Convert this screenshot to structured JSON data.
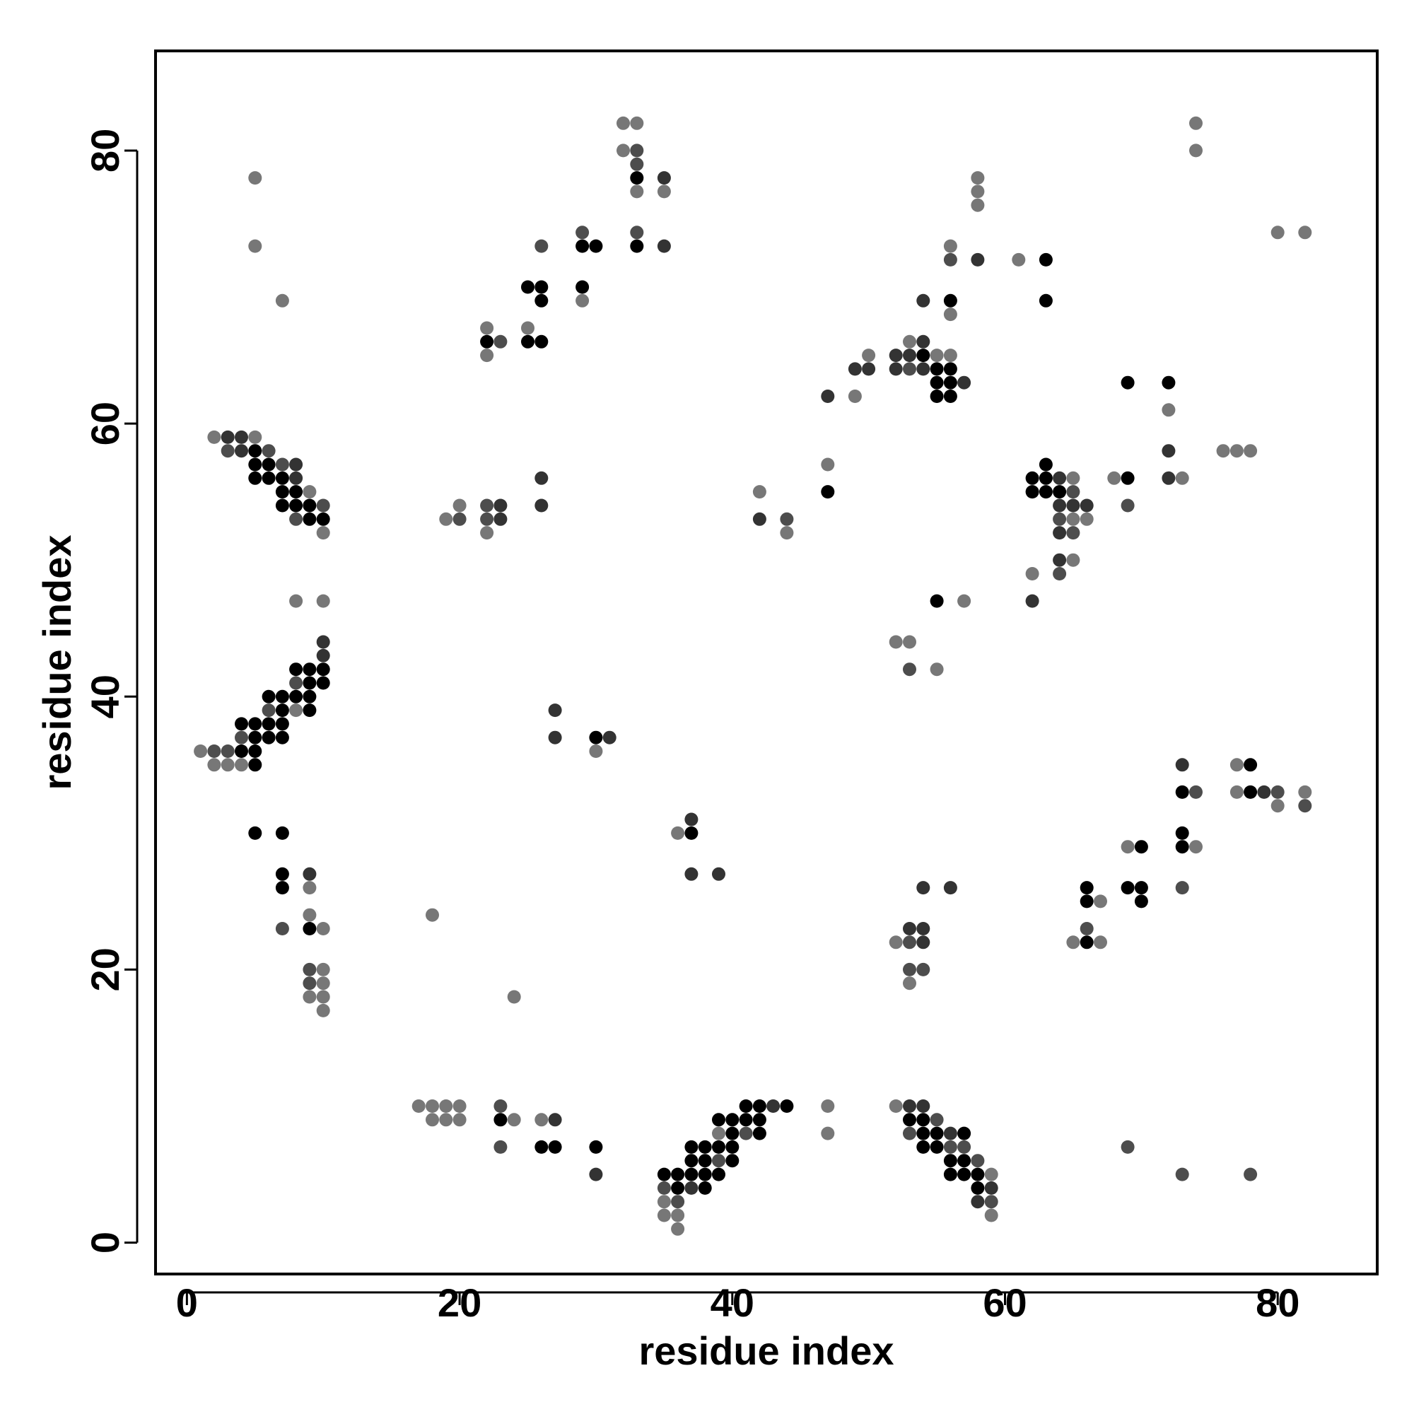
{
  "chart_data": {
    "type": "scatter",
    "title": "",
    "xlabel": "residue index",
    "ylabel": "residue index",
    "xlim": [
      -2.3,
      87.3
    ],
    "ylim": [
      -2.3,
      87.3
    ],
    "xticks": [
      0,
      20,
      40,
      60,
      80
    ],
    "yticks": [
      0,
      20,
      40,
      60,
      80
    ],
    "grid": false,
    "legend": "none",
    "marker": "filled circle",
    "point_shades": {
      "1": "#000000",
      "2": "#333333",
      "3": "#4d4d4d",
      "4": "#777777"
    },
    "points": [
      [
        5,
        78,
        4
      ],
      [
        5,
        73,
        4
      ],
      [
        7,
        69,
        4
      ],
      [
        2,
        59,
        4
      ],
      [
        3,
        59,
        2
      ],
      [
        4,
        59,
        2
      ],
      [
        5,
        59,
        4
      ],
      [
        3,
        58,
        3
      ],
      [
        4,
        58,
        2
      ],
      [
        5,
        58,
        1
      ],
      [
        6,
        58,
        3
      ],
      [
        5,
        57,
        1
      ],
      [
        6,
        57,
        1
      ],
      [
        7,
        57,
        3
      ],
      [
        8,
        57,
        2
      ],
      [
        5,
        56,
        1
      ],
      [
        6,
        56,
        1
      ],
      [
        7,
        56,
        1
      ],
      [
        8,
        56,
        2
      ],
      [
        7,
        55,
        1
      ],
      [
        8,
        55,
        1
      ],
      [
        9,
        55,
        4
      ],
      [
        7,
        54,
        1
      ],
      [
        8,
        54,
        1
      ],
      [
        9,
        54,
        1
      ],
      [
        10,
        54,
        3
      ],
      [
        8,
        53,
        3
      ],
      [
        9,
        53,
        1
      ],
      [
        10,
        53,
        1
      ],
      [
        10,
        52,
        4
      ],
      [
        8,
        47,
        4
      ],
      [
        10,
        47,
        4
      ],
      [
        10,
        44,
        2
      ],
      [
        10,
        43,
        2
      ],
      [
        8,
        42,
        1
      ],
      [
        9,
        42,
        1
      ],
      [
        10,
        42,
        1
      ],
      [
        8,
        41,
        3
      ],
      [
        9,
        41,
        1
      ],
      [
        10,
        41,
        1
      ],
      [
        6,
        40,
        1
      ],
      [
        7,
        40,
        1
      ],
      [
        8,
        40,
        1
      ],
      [
        9,
        40,
        1
      ],
      [
        6,
        39,
        3
      ],
      [
        7,
        39,
        1
      ],
      [
        8,
        39,
        4
      ],
      [
        9,
        39,
        1
      ],
      [
        4,
        38,
        1
      ],
      [
        5,
        38,
        1
      ],
      [
        6,
        38,
        1
      ],
      [
        7,
        38,
        1
      ],
      [
        4,
        37,
        3
      ],
      [
        5,
        37,
        1
      ],
      [
        6,
        37,
        1
      ],
      [
        7,
        37,
        1
      ],
      [
        1,
        36,
        4
      ],
      [
        2,
        36,
        3
      ],
      [
        3,
        36,
        3
      ],
      [
        4,
        36,
        1
      ],
      [
        5,
        36,
        1
      ],
      [
        2,
        35,
        4
      ],
      [
        3,
        35,
        4
      ],
      [
        4,
        35,
        4
      ],
      [
        5,
        35,
        1
      ],
      [
        5,
        30,
        1
      ],
      [
        7,
        30,
        1
      ],
      [
        7,
        27,
        1
      ],
      [
        9,
        27,
        2
      ],
      [
        7,
        26,
        1
      ],
      [
        9,
        26,
        4
      ],
      [
        9,
        24,
        4
      ],
      [
        7,
        23,
        3
      ],
      [
        9,
        23,
        1
      ],
      [
        10,
        23,
        4
      ],
      [
        9,
        20,
        3
      ],
      [
        10,
        20,
        4
      ],
      [
        9,
        19,
        3
      ],
      [
        10,
        19,
        4
      ],
      [
        9,
        18,
        4
      ],
      [
        10,
        18,
        4
      ],
      [
        10,
        17,
        4
      ],
      [
        18,
        24,
        4
      ],
      [
        24,
        18,
        4
      ],
      [
        17,
        10,
        4
      ],
      [
        18,
        10,
        4
      ],
      [
        19,
        10,
        4
      ],
      [
        20,
        10,
        4
      ],
      [
        18,
        9,
        4
      ],
      [
        19,
        9,
        4
      ],
      [
        20,
        9,
        4
      ],
      [
        23,
        10,
        3
      ],
      [
        23,
        9,
        1
      ],
      [
        24,
        9,
        4
      ],
      [
        26,
        9,
        4
      ],
      [
        27,
        9,
        2
      ],
      [
        23,
        7,
        3
      ],
      [
        26,
        7,
        1
      ],
      [
        27,
        7,
        1
      ],
      [
        30,
        7,
        1
      ],
      [
        30,
        5,
        2
      ],
      [
        19,
        53,
        4
      ],
      [
        20,
        54,
        4
      ],
      [
        20,
        53,
        3
      ],
      [
        22,
        54,
        3
      ],
      [
        23,
        54,
        2
      ],
      [
        22,
        53,
        3
      ],
      [
        23,
        53,
        2
      ],
      [
        22,
        52,
        4
      ],
      [
        26,
        56,
        2
      ],
      [
        26,
        54,
        2
      ],
      [
        22,
        67,
        4
      ],
      [
        22,
        66,
        1
      ],
      [
        23,
        66,
        3
      ],
      [
        22,
        65,
        4
      ],
      [
        25,
        67,
        4
      ],
      [
        25,
        66,
        1
      ],
      [
        26,
        66,
        1
      ],
      [
        25,
        70,
        1
      ],
      [
        26,
        70,
        1
      ],
      [
        26,
        69,
        1
      ],
      [
        26,
        73,
        3
      ],
      [
        29,
        74,
        3
      ],
      [
        29,
        73,
        1
      ],
      [
        30,
        73,
        1
      ],
      [
        29,
        70,
        1
      ],
      [
        29,
        69,
        4
      ],
      [
        32,
        82,
        4
      ],
      [
        33,
        82,
        4
      ],
      [
        32,
        80,
        4
      ],
      [
        33,
        80,
        3
      ],
      [
        33,
        79,
        3
      ],
      [
        33,
        78,
        1
      ],
      [
        35,
        78,
        2
      ],
      [
        33,
        77,
        4
      ],
      [
        35,
        77,
        4
      ],
      [
        33,
        74,
        3
      ],
      [
        33,
        73,
        1
      ],
      [
        35,
        73,
        2
      ],
      [
        27,
        39,
        2
      ],
      [
        27,
        37,
        2
      ],
      [
        30,
        37,
        1
      ],
      [
        31,
        37,
        2
      ],
      [
        30,
        36,
        4
      ],
      [
        36,
        30,
        4
      ],
      [
        37,
        31,
        2
      ],
      [
        37,
        30,
        1
      ],
      [
        37,
        27,
        2
      ],
      [
        39,
        27,
        2
      ],
      [
        36,
        5,
        1
      ],
      [
        35,
        5,
        1
      ],
      [
        35,
        4,
        3
      ],
      [
        36,
        4,
        1
      ],
      [
        37,
        4,
        2
      ],
      [
        38,
        4,
        1
      ],
      [
        35,
        3,
        4
      ],
      [
        36,
        3,
        3
      ],
      [
        35,
        2,
        4
      ],
      [
        36,
        2,
        4
      ],
      [
        36,
        1,
        4
      ],
      [
        37,
        7,
        1
      ],
      [
        38,
        7,
        1
      ],
      [
        39,
        7,
        1
      ],
      [
        40,
        7,
        1
      ],
      [
        37,
        6,
        1
      ],
      [
        38,
        6,
        1
      ],
      [
        39,
        6,
        3
      ],
      [
        40,
        6,
        1
      ],
      [
        37,
        5,
        1
      ],
      [
        38,
        5,
        1
      ],
      [
        39,
        5,
        1
      ],
      [
        39,
        9,
        1
      ],
      [
        40,
        9,
        1
      ],
      [
        41,
        9,
        1
      ],
      [
        42,
        9,
        1
      ],
      [
        39,
        8,
        4
      ],
      [
        40,
        8,
        1
      ],
      [
        41,
        8,
        3
      ],
      [
        42,
        8,
        1
      ],
      [
        41,
        10,
        1
      ],
      [
        42,
        10,
        1
      ],
      [
        43,
        10,
        2
      ],
      [
        44,
        10,
        1
      ],
      [
        47,
        10,
        4
      ],
      [
        47,
        8,
        4
      ],
      [
        52,
        10,
        4
      ],
      [
        53,
        10,
        2
      ],
      [
        54,
        10,
        2
      ],
      [
        53,
        9,
        1
      ],
      [
        54,
        9,
        1
      ],
      [
        55,
        9,
        3
      ],
      [
        53,
        8,
        3
      ],
      [
        54,
        8,
        1
      ],
      [
        55,
        8,
        1
      ],
      [
        56,
        8,
        2
      ],
      [
        57,
        8,
        1
      ],
      [
        54,
        7,
        1
      ],
      [
        55,
        7,
        1
      ],
      [
        56,
        7,
        3
      ],
      [
        57,
        7,
        3
      ],
      [
        56,
        6,
        1
      ],
      [
        57,
        6,
        1
      ],
      [
        58,
        6,
        3
      ],
      [
        56,
        5,
        1
      ],
      [
        57,
        5,
        1
      ],
      [
        58,
        5,
        1
      ],
      [
        59,
        5,
        4
      ],
      [
        58,
        4,
        1
      ],
      [
        59,
        4,
        2
      ],
      [
        58,
        3,
        2
      ],
      [
        59,
        3,
        3
      ],
      [
        59,
        2,
        4
      ],
      [
        42,
        55,
        4
      ],
      [
        42,
        53,
        2
      ],
      [
        44,
        53,
        3
      ],
      [
        44,
        52,
        4
      ],
      [
        47,
        62,
        2
      ],
      [
        47,
        57,
        4
      ],
      [
        47,
        55,
        1
      ],
      [
        49,
        64,
        2
      ],
      [
        50,
        65,
        4
      ],
      [
        50,
        64,
        2
      ],
      [
        49,
        62,
        4
      ],
      [
        52,
        65,
        2
      ],
      [
        53,
        66,
        4
      ],
      [
        54,
        66,
        2
      ],
      [
        53,
        65,
        2
      ],
      [
        54,
        65,
        1
      ],
      [
        55,
        65,
        4
      ],
      [
        56,
        65,
        4
      ],
      [
        52,
        64,
        2
      ],
      [
        53,
        64,
        3
      ],
      [
        54,
        64,
        2
      ],
      [
        55,
        64,
        1
      ],
      [
        56,
        64,
        1
      ],
      [
        55,
        63,
        1
      ],
      [
        56,
        63,
        1
      ],
      [
        57,
        63,
        2
      ],
      [
        55,
        62,
        1
      ],
      [
        56,
        62,
        1
      ],
      [
        54,
        69,
        2
      ],
      [
        56,
        69,
        1
      ],
      [
        56,
        68,
        4
      ],
      [
        56,
        73,
        4
      ],
      [
        56,
        72,
        3
      ],
      [
        58,
        72,
        2
      ],
      [
        58,
        78,
        4
      ],
      [
        58,
        77,
        4
      ],
      [
        58,
        76,
        4
      ],
      [
        61,
        72,
        4
      ],
      [
        63,
        72,
        1
      ],
      [
        63,
        69,
        1
      ],
      [
        52,
        44,
        4
      ],
      [
        53,
        44,
        4
      ],
      [
        53,
        42,
        3
      ],
      [
        55,
        42,
        4
      ],
      [
        55,
        47,
        1
      ],
      [
        57,
        47,
        4
      ],
      [
        52,
        22,
        4
      ],
      [
        53,
        23,
        2
      ],
      [
        54,
        23,
        2
      ],
      [
        53,
        22,
        3
      ],
      [
        54,
        22,
        2
      ],
      [
        53,
        20,
        3
      ],
      [
        54,
        20,
        3
      ],
      [
        53,
        19,
        4
      ],
      [
        54,
        26,
        2
      ],
      [
        56,
        26,
        2
      ],
      [
        62,
        56,
        1
      ],
      [
        63,
        56,
        1
      ],
      [
        64,
        56,
        2
      ],
      [
        65,
        56,
        4
      ],
      [
        62,
        55,
        1
      ],
      [
        63,
        55,
        1
      ],
      [
        64,
        55,
        1
      ],
      [
        65,
        55,
        3
      ],
      [
        63,
        57,
        1
      ],
      [
        64,
        54,
        2
      ],
      [
        65,
        54,
        2
      ],
      [
        66,
        54,
        2
      ],
      [
        64,
        53,
        3
      ],
      [
        65,
        53,
        4
      ],
      [
        66,
        53,
        4
      ],
      [
        64,
        52,
        2
      ],
      [
        65,
        52,
        3
      ],
      [
        64,
        50,
        2
      ],
      [
        65,
        50,
        4
      ],
      [
        64,
        49,
        3
      ],
      [
        62,
        49,
        4
      ],
      [
        62,
        47,
        2
      ],
      [
        68,
        56,
        4
      ],
      [
        69,
        56,
        1
      ],
      [
        69,
        54,
        3
      ],
      [
        69,
        63,
        1
      ],
      [
        72,
        63,
        1
      ],
      [
        72,
        61,
        4
      ],
      [
        72,
        58,
        2
      ],
      [
        72,
        56,
        2
      ],
      [
        73,
        56,
        4
      ],
      [
        76,
        58,
        4
      ],
      [
        77,
        58,
        4
      ],
      [
        78,
        58,
        4
      ],
      [
        74,
        82,
        4
      ],
      [
        74,
        80,
        4
      ],
      [
        80,
        74,
        4
      ],
      [
        82,
        74,
        4
      ],
      [
        66,
        26,
        1
      ],
      [
        66,
        25,
        1
      ],
      [
        67,
        25,
        4
      ],
      [
        65,
        22,
        4
      ],
      [
        66,
        22,
        1
      ],
      [
        67,
        22,
        4
      ],
      [
        66,
        23,
        3
      ],
      [
        69,
        29,
        4
      ],
      [
        70,
        29,
        1
      ],
      [
        69,
        26,
        1
      ],
      [
        70,
        26,
        1
      ],
      [
        70,
        25,
        1
      ],
      [
        73,
        35,
        2
      ],
      [
        73,
        33,
        1
      ],
      [
        74,
        33,
        3
      ],
      [
        73,
        30,
        1
      ],
      [
        73,
        29,
        1
      ],
      [
        74,
        29,
        4
      ],
      [
        73,
        26,
        3
      ],
      [
        77,
        35,
        4
      ],
      [
        78,
        35,
        1
      ],
      [
        77,
        33,
        4
      ],
      [
        78,
        33,
        1
      ],
      [
        79,
        33,
        2
      ],
      [
        80,
        33,
        3
      ],
      [
        80,
        32,
        4
      ],
      [
        82,
        33,
        4
      ],
      [
        82,
        32,
        3
      ],
      [
        69,
        7,
        3
      ],
      [
        73,
        5,
        3
      ],
      [
        78,
        5,
        3
      ]
    ]
  }
}
